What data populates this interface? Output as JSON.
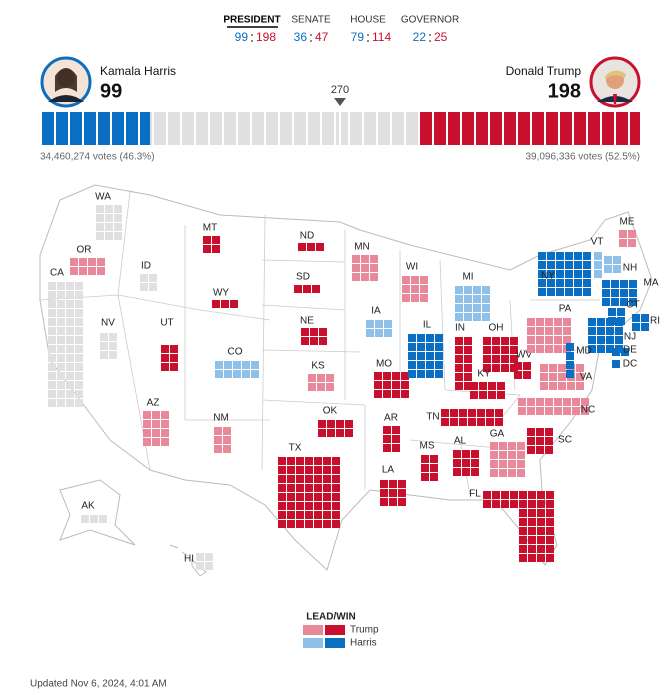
{
  "tabs": [
    {
      "label": "PRESIDENT",
      "harris": 99,
      "trump": 198
    },
    {
      "label": "SENATE",
      "harris": 36,
      "trump": 47
    },
    {
      "label": "HOUSE",
      "harris": 79,
      "trump": 114
    },
    {
      "label": "GOVERNOR",
      "harris": 22,
      "trump": 25
    }
  ],
  "candidates": {
    "harris": {
      "name": "Kamala Harris",
      "electoral_votes": 99,
      "votes": "34,460,274 votes (46.3%)",
      "color": "#0a6fc2"
    },
    "trump": {
      "name": "Donald Trump",
      "electoral_votes": 198,
      "votes": "39,096,336 votes (52.5%)",
      "color": "#c8102e"
    }
  },
  "threshold": 270,
  "states": [
    {
      "label": "WA",
      "color": "#e0e0e0"
    },
    {
      "label": "OR",
      "color": "#e8899b"
    },
    {
      "label": "ID",
      "color": "#e0e0e0"
    },
    {
      "label": "CA",
      "color": "#e0e0e0"
    },
    {
      "label": "NV",
      "color": "#e0e0e0"
    },
    {
      "label": "MT",
      "color": "#c8102e"
    },
    {
      "label": "WY",
      "color": "#c8102e"
    },
    {
      "label": "UT",
      "color": "#c8102e"
    },
    {
      "label": "CO",
      "color": "#8ec0e8"
    },
    {
      "label": "AZ",
      "color": "#e8899b"
    },
    {
      "label": "NM",
      "color": "#e8899b"
    },
    {
      "label": "ND",
      "color": "#c8102e"
    },
    {
      "label": "SD",
      "color": "#c8102e"
    },
    {
      "label": "NE",
      "color": "#c8102e"
    },
    {
      "label": "KS",
      "color": "#e8899b"
    },
    {
      "label": "OK",
      "color": "#c8102e"
    },
    {
      "label": "TX",
      "color": "#c8102e"
    },
    {
      "label": "MN",
      "color": "#e8899b"
    },
    {
      "label": "IA",
      "color": "#8ec0e8"
    },
    {
      "label": "MO",
      "color": "#c8102e"
    },
    {
      "label": "AR",
      "color": "#c8102e"
    },
    {
      "label": "LA",
      "color": "#c8102e"
    },
    {
      "label": "WI",
      "color": "#e8899b"
    },
    {
      "label": "IL",
      "color": "#0a6fc2"
    },
    {
      "label": "MI",
      "color": "#8ec0e8"
    },
    {
      "label": "IN",
      "color": "#c8102e"
    },
    {
      "label": "OH",
      "color": "#c8102e"
    },
    {
      "label": "KY",
      "color": "#c8102e"
    },
    {
      "label": "TN",
      "color": "#c8102e"
    },
    {
      "label": "MS",
      "color": "#c8102e"
    },
    {
      "label": "AL",
      "color": "#c8102e"
    },
    {
      "label": "GA",
      "color": "#e8899b"
    },
    {
      "label": "FL",
      "color": "#c8102e"
    },
    {
      "label": "SC",
      "color": "#c8102e"
    },
    {
      "label": "NC",
      "color": "#e8899b"
    },
    {
      "label": "VA",
      "color": "#e8899b"
    },
    {
      "label": "WV",
      "color": "#c8102e"
    },
    {
      "label": "PA",
      "color": "#e8899b"
    },
    {
      "label": "NY",
      "color": "#0a6fc2"
    },
    {
      "label": "VT",
      "color": "#8ec0e8"
    },
    {
      "label": "NH",
      "color": "#8ec0e8"
    },
    {
      "label": "MA",
      "color": "#0a6fc2"
    },
    {
      "label": "CT",
      "color": "#0a6fc2"
    },
    {
      "label": "RI",
      "color": "#0a6fc2"
    },
    {
      "label": "NJ",
      "color": "#0a6fc2"
    },
    {
      "label": "MD",
      "color": "#0a6fc2"
    },
    {
      "label": "DE",
      "color": "#0a6fc2"
    },
    {
      "label": "DC",
      "color": "#0a6fc2"
    },
    {
      "label": "ME",
      "color": "#e8899b"
    },
    {
      "label": "AK",
      "color": "#e0e0e0"
    },
    {
      "label": "HI",
      "color": "#e0e0e0"
    }
  ],
  "legend": {
    "title": "LEAD/WIN",
    "items": [
      {
        "label": "Trump",
        "colors": [
          "#e8899b",
          "#c8102e"
        ]
      },
      {
        "label": "Harris",
        "colors": [
          "#8ec0e8",
          "#0a6fc2"
        ]
      }
    ]
  },
  "updated": "Updated Nov 6, 2024, 4:01 AM"
}
